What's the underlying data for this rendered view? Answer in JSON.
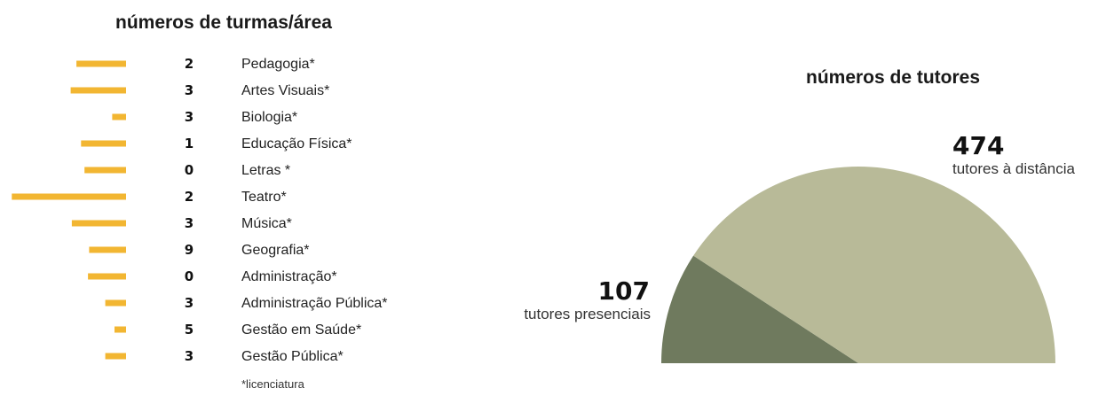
{
  "left_title": "números de turmas/área",
  "right_title": "números de tutores",
  "footnote": "*licenciatura",
  "colors": {
    "bar": "#f2b632",
    "pie_distancia": "#b8ba98",
    "pie_presencial": "#6f7a5e"
  },
  "chart_data": [
    {
      "type": "bar",
      "orientation": "horizontal",
      "title": "números de turmas/área",
      "categories": [
        "Pedagogia*",
        "Artes Visuais*",
        "Biologia*",
        "Educação Física*",
        "Letras *",
        "Teatro*",
        "Música*",
        "Geografia*",
        "Administração*",
        "Administração Pública*",
        "Gestão em Saúde*",
        "Gestão Pública*"
      ],
      "count_labels": [
        "2",
        "3",
        "3",
        "1",
        "0",
        "2",
        "3",
        "9",
        "0",
        "3",
        "5",
        "3"
      ],
      "values": [
        4.3,
        4.8,
        1.2,
        3.9,
        3.6,
        9.9,
        4.7,
        3.2,
        3.3,
        1.8,
        1.0,
        1.8
      ],
      "footnote": "*licenciatura"
    },
    {
      "type": "pie",
      "title": "números de tutores",
      "style": "half-donut",
      "slices": [
        {
          "value": 107,
          "label": "tutores presenciais",
          "color": "#6f7a5e"
        },
        {
          "value": 474,
          "label": "tutores à distância",
          "color": "#b8ba98"
        }
      ]
    }
  ]
}
